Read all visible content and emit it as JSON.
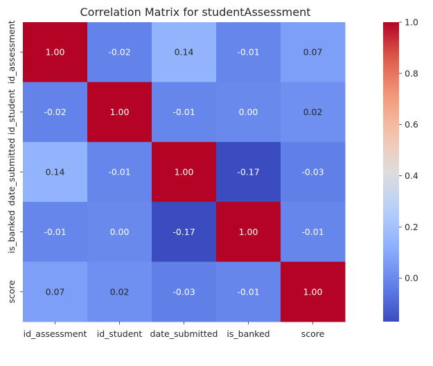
{
  "chart_data": {
    "type": "heatmap",
    "title": "Correlation Matrix for studentAssessment",
    "x_labels": [
      "id_assessment",
      "id_student",
      "date_submitted",
      "is_banked",
      "score"
    ],
    "y_labels": [
      "id_assessment",
      "id_student",
      "date_submitted",
      "is_banked",
      "score"
    ],
    "values": [
      [
        1.0,
        -0.02,
        0.14,
        -0.01,
        0.07
      ],
      [
        -0.02,
        1.0,
        -0.01,
        0.0,
        0.02
      ],
      [
        0.14,
        -0.01,
        1.0,
        -0.17,
        -0.03
      ],
      [
        -0.01,
        0.0,
        -0.17,
        1.0,
        -0.01
      ],
      [
        0.07,
        0.02,
        -0.03,
        -0.01,
        1.0
      ]
    ],
    "value_format": "0.00",
    "colormap": "coolwarm",
    "colorbar": {
      "vmin": -0.17,
      "vmax": 1.0,
      "ticks": [
        1.0,
        0.8,
        0.6,
        0.4,
        0.2,
        0.0
      ],
      "tick_labels": [
        "1.0",
        "0.8",
        "0.6",
        "0.4",
        "0.2",
        "0.0"
      ],
      "placement": "right"
    }
  }
}
